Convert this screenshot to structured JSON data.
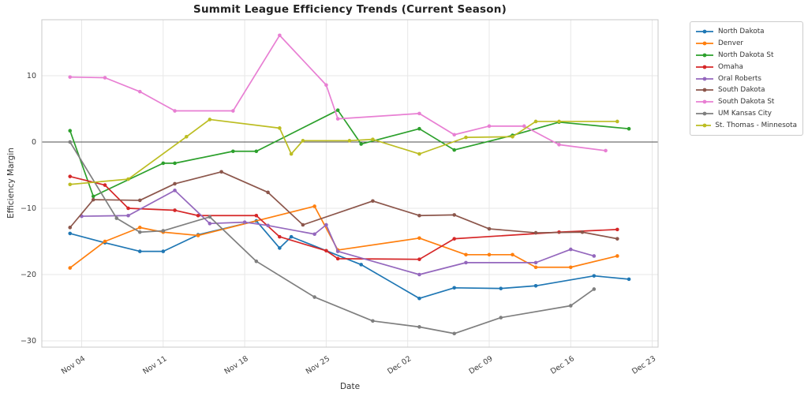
{
  "figure": {
    "title": "Summit League Efficiency Trends (Current Season)",
    "xlabel": "Date",
    "ylabel": "Efficiency Margin"
  },
  "chart_data": {
    "type": "line",
    "title": "Summit League Efficiency Trends (Current Season)",
    "xlabel": "Date",
    "ylabel": "Efficiency Margin",
    "x_tick_labels": [
      "Nov 04",
      "Nov 11",
      "Nov 18",
      "Nov 25",
      "Dec 02",
      "Dec 09",
      "Dec 16",
      "Dec 23"
    ],
    "y_ticks": [
      10,
      0,
      -10,
      -20,
      -30
    ],
    "ylim": [
      -31.0,
      18.4
    ],
    "grid": true,
    "zero_line": true,
    "legend_position": "outside-top-right",
    "colors": {
      "grid": "#e7e7e7",
      "zero_line": "#4d4d4d",
      "spine": "#c9c9c9",
      "tick_text": "#3d3d3d"
    },
    "series": [
      {
        "name": "North Dakota",
        "color": "#1f77b4",
        "points": [
          [
            "Nov 03",
            -13.8
          ],
          [
            "Nov 06",
            -15.2
          ],
          [
            "Nov 09",
            -16.5
          ],
          [
            "Nov 11",
            -16.5
          ],
          [
            "Nov 14",
            -14.0
          ],
          [
            "Nov 19",
            -11.9
          ],
          [
            "Nov 21",
            -16.0
          ],
          [
            "Nov 22",
            -14.3
          ],
          [
            "Nov 28",
            -18.5
          ],
          [
            "Dec 03",
            -23.6
          ],
          [
            "Dec 06",
            -22.0
          ],
          [
            "Dec 10",
            -22.1
          ],
          [
            "Dec 13",
            -21.7
          ],
          [
            "Dec 18",
            -20.2
          ],
          [
            "Dec 21",
            -20.7
          ]
        ]
      },
      {
        "name": "Denver",
        "color": "#ff7f0e",
        "points": [
          [
            "Nov 03",
            -19.0
          ],
          [
            "Nov 06",
            -15.0
          ],
          [
            "Nov 09",
            -12.9
          ],
          [
            "Nov 11",
            -13.6
          ],
          [
            "Nov 14",
            -14.1
          ],
          [
            "Nov 24",
            -9.7
          ],
          [
            "Nov 26",
            -16.3
          ],
          [
            "Dec 03",
            -14.5
          ],
          [
            "Dec 07",
            -17.0
          ],
          [
            "Dec 09",
            -17.0
          ],
          [
            "Dec 11",
            -17.0
          ],
          [
            "Dec 13",
            -18.9
          ],
          [
            "Dec 16",
            -18.9
          ],
          [
            "Dec 20",
            -17.2
          ]
        ]
      },
      {
        "name": "North Dakota St",
        "color": "#2ca02c",
        "points": [
          [
            "Nov 03",
            1.7
          ],
          [
            "Nov 05",
            -8.2
          ],
          [
            "Nov 11",
            -3.2
          ],
          [
            "Nov 12",
            -3.2
          ],
          [
            "Nov 17",
            -1.4
          ],
          [
            "Nov 19",
            -1.4
          ],
          [
            "Nov 26",
            4.8
          ],
          [
            "Nov 28",
            -0.3
          ],
          [
            "Dec 03",
            2.0
          ],
          [
            "Dec 06",
            -1.2
          ],
          [
            "Dec 11",
            1.0
          ],
          [
            "Dec 15",
            3.0
          ],
          [
            "Dec 21",
            2.0
          ]
        ]
      },
      {
        "name": "Omaha",
        "color": "#d62728",
        "points": [
          [
            "Nov 03",
            -5.2
          ],
          [
            "Nov 06",
            -6.5
          ],
          [
            "Nov 08",
            -10.0
          ],
          [
            "Nov 12",
            -10.3
          ],
          [
            "Nov 14",
            -11.1
          ],
          [
            "Nov 19",
            -11.1
          ],
          [
            "Nov 21",
            -14.3
          ],
          [
            "Nov 25",
            -16.4
          ],
          [
            "Nov 26",
            -17.6
          ],
          [
            "Dec 03",
            -17.7
          ],
          [
            "Dec 06",
            -14.6
          ],
          [
            "Dec 15",
            -13.6
          ],
          [
            "Dec 20",
            -13.2
          ]
        ]
      },
      {
        "name": "Oral Roberts",
        "color": "#9467bd",
        "points": [
          [
            "Nov 04",
            -11.2
          ],
          [
            "Nov 08",
            -11.1
          ],
          [
            "Nov 12",
            -7.3
          ],
          [
            "Nov 15",
            -12.3
          ],
          [
            "Nov 18",
            -12.1
          ],
          [
            "Nov 20",
            -12.6
          ],
          [
            "Nov 24",
            -13.9
          ],
          [
            "Nov 25",
            -12.5
          ],
          [
            "Nov 26",
            -16.5
          ],
          [
            "Dec 03",
            -20.0
          ],
          [
            "Dec 07",
            -18.2
          ],
          [
            "Dec 13",
            -18.2
          ],
          [
            "Dec 16",
            -16.2
          ],
          [
            "Dec 18",
            -17.2
          ]
        ]
      },
      {
        "name": "South Dakota",
        "color": "#8c564b",
        "points": [
          [
            "Nov 03",
            -12.9
          ],
          [
            "Nov 05",
            -8.7
          ],
          [
            "Nov 09",
            -8.8
          ],
          [
            "Nov 12",
            -6.3
          ],
          [
            "Nov 16",
            -4.5
          ],
          [
            "Nov 20",
            -7.6
          ],
          [
            "Nov 23",
            -12.5
          ],
          [
            "Nov 29",
            -8.9
          ],
          [
            "Dec 03",
            -11.1
          ],
          [
            "Dec 06",
            -11.0
          ],
          [
            "Dec 09",
            -13.1
          ],
          [
            "Dec 13",
            -13.7
          ],
          [
            "Dec 17",
            -13.6
          ],
          [
            "Dec 20",
            -14.6
          ]
        ]
      },
      {
        "name": "South Dakota St",
        "color": "#e87fd3",
        "points": [
          [
            "Nov 03",
            9.8
          ],
          [
            "Nov 06",
            9.7
          ],
          [
            "Nov 09",
            7.6
          ],
          [
            "Nov 12",
            4.7
          ],
          [
            "Nov 17",
            4.7
          ],
          [
            "Nov 21",
            16.1
          ],
          [
            "Nov 25",
            8.6
          ],
          [
            "Nov 26",
            3.5
          ],
          [
            "Dec 03",
            4.3
          ],
          [
            "Dec 06",
            1.1
          ],
          [
            "Dec 09",
            2.4
          ],
          [
            "Dec 12",
            2.4
          ],
          [
            "Dec 15",
            -0.4
          ],
          [
            "Dec 19",
            -1.3
          ]
        ]
      },
      {
        "name": "UM Kansas City",
        "color": "#7f7f7f",
        "points": [
          [
            "Nov 03",
            0.0
          ],
          [
            "Nov 07",
            -11.5
          ],
          [
            "Nov 09",
            -13.6
          ],
          [
            "Nov 11",
            -13.4
          ],
          [
            "Nov 15",
            -11.3
          ],
          [
            "Nov 19",
            -18.0
          ],
          [
            "Nov 24",
            -23.4
          ],
          [
            "Nov 29",
            -27.0
          ],
          [
            "Dec 03",
            -27.9
          ],
          [
            "Dec 06",
            -28.9
          ],
          [
            "Dec 10",
            -26.5
          ],
          [
            "Dec 16",
            -24.7
          ],
          [
            "Dec 18",
            -22.2
          ]
        ]
      },
      {
        "name": "St. Thomas - Minnesota",
        "color": "#bcbd22",
        "points": [
          [
            "Nov 03",
            -6.4
          ],
          [
            "Nov 08",
            -5.6
          ],
          [
            "Nov 13",
            0.8
          ],
          [
            "Nov 15",
            3.4
          ],
          [
            "Nov 21",
            2.1
          ],
          [
            "Nov 22",
            -1.8
          ],
          [
            "Nov 23",
            0.2
          ],
          [
            "Nov 27",
            0.2
          ],
          [
            "Nov 29",
            0.4
          ],
          [
            "Dec 03",
            -1.8
          ],
          [
            "Dec 07",
            0.7
          ],
          [
            "Dec 11",
            0.8
          ],
          [
            "Dec 13",
            3.1
          ],
          [
            "Dec 15",
            3.1
          ],
          [
            "Dec 20",
            3.1
          ]
        ]
      }
    ]
  }
}
